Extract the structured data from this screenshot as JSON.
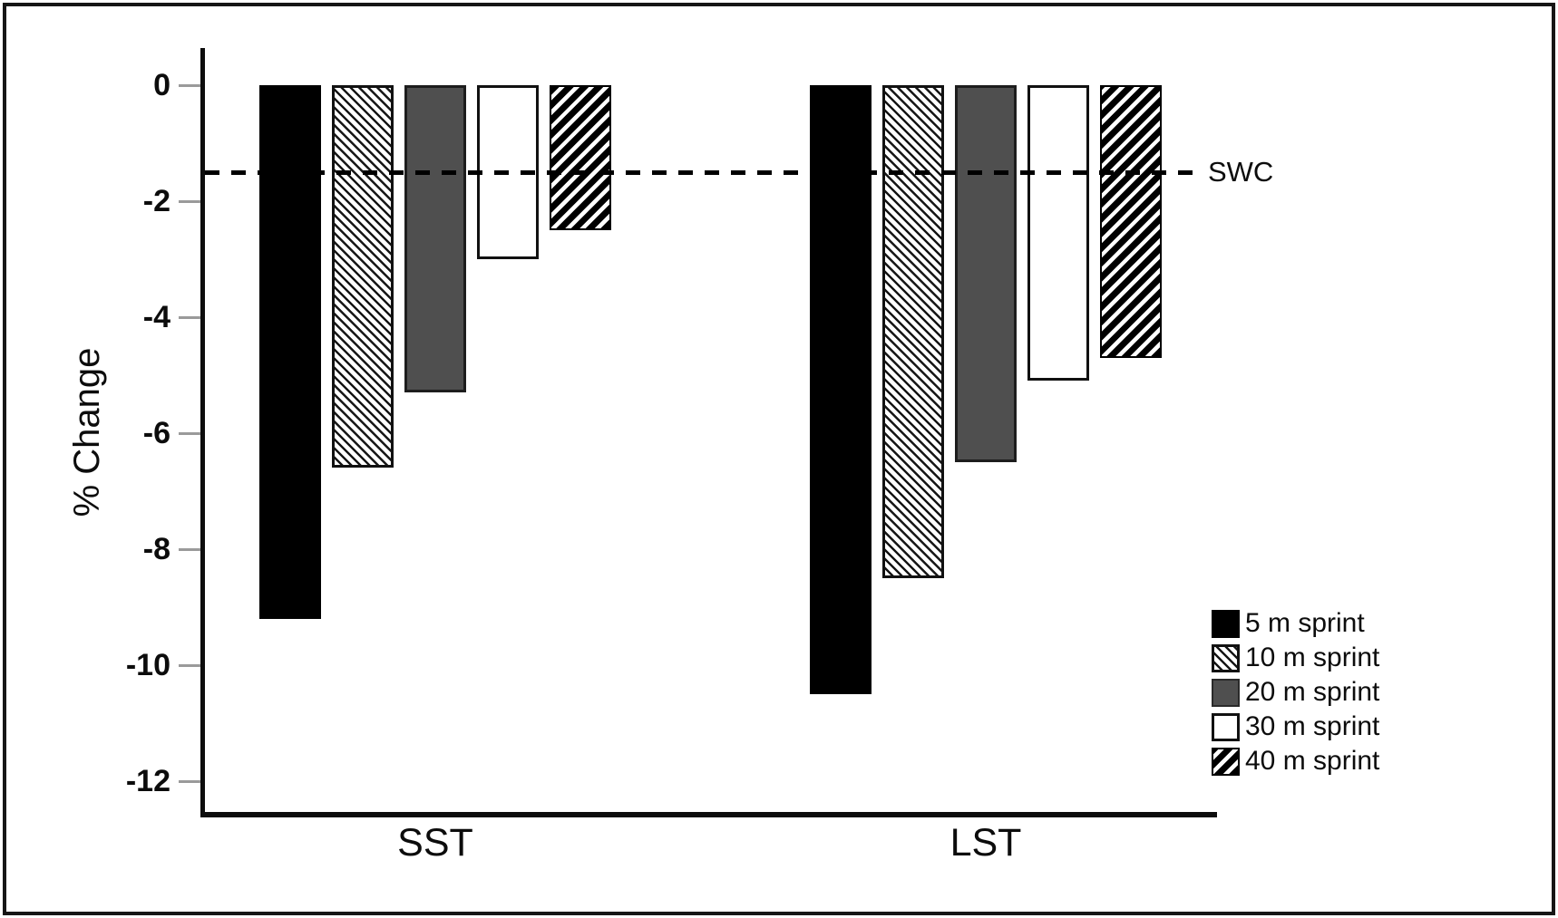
{
  "figure": {
    "background": "#ffffff",
    "frame_border_color": "#161616"
  },
  "chart_data": {
    "type": "bar",
    "title": "",
    "xlabel": "",
    "ylabel": "% Change",
    "categories": [
      "SST",
      "LST"
    ],
    "series": [
      {
        "name": "5 m sprint",
        "pattern": "solid-black",
        "values": [
          -9.2,
          -10.5
        ]
      },
      {
        "name": "10 m sprint",
        "pattern": "thin-diagonal-hatch-white",
        "values": [
          -6.6,
          -8.5
        ]
      },
      {
        "name": "20 m sprint",
        "pattern": "solid-gray",
        "values": [
          -5.3,
          -6.5
        ]
      },
      {
        "name": "30 m sprint",
        "pattern": "solid-white",
        "values": [
          -3.0,
          -5.1
        ]
      },
      {
        "name": "40 m sprint",
        "pattern": "bold-diagonal-hatch-black",
        "values": [
          -2.5,
          -4.7
        ]
      }
    ],
    "yticks": [
      0,
      -2,
      -4,
      -6,
      -8,
      -10,
      -12
    ],
    "ylim": [
      -12.6,
      0.65
    ],
    "grid": false,
    "legend_position": "bottom-right",
    "reference_line": {
      "label": "SWC",
      "value": -1.5,
      "style": "dashed",
      "color": "#000000"
    },
    "colors": {
      "bar_black": "#000000",
      "bar_gray": "#4f4f4f",
      "bar_white": "#ffffff",
      "axis": "#0d0d0d",
      "tick": "#9a9a9a"
    }
  }
}
